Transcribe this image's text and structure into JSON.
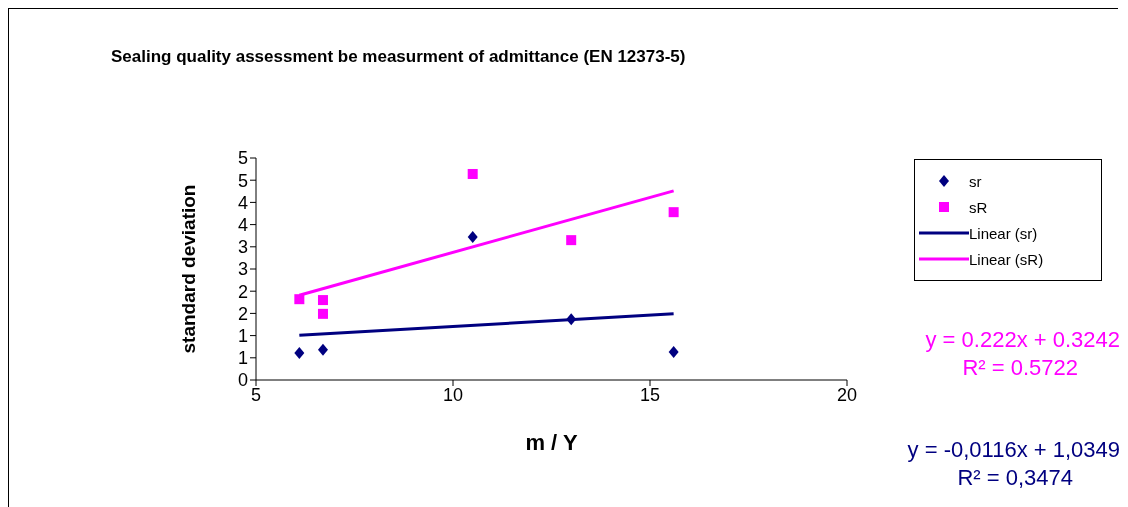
{
  "chart_data": {
    "type": "scatter",
    "title": "Sealing quality assessment be measurment of admittance (EN 12373-5)",
    "xlabel": "m / Y",
    "ylabel": "standard deviation",
    "xlim": [
      5,
      20
    ],
    "xticks": [
      5,
      10,
      15,
      20
    ],
    "ylim": [
      0,
      5
    ],
    "yticks": [
      0,
      {
        "value": 0.5,
        "label": "1"
      },
      1,
      {
        "value": 1.5,
        "label": "2"
      },
      2,
      {
        "value": 2.5,
        "label": "3"
      },
      3,
      {
        "value": 3.5,
        "label": "4"
      },
      4,
      {
        "value": 4.5,
        "label": "5"
      },
      5
    ],
    "legend": "right",
    "series": [
      {
        "name": "sr",
        "marker": "diamond",
        "color": "#000080",
        "x": [
          6.1,
          6.7,
          10.5,
          13,
          15.6
        ],
        "values": [
          0.61,
          0.68,
          3.22,
          1.37,
          0.63
        ]
      },
      {
        "name": "sR",
        "marker": "square",
        "color": "#ff00ff",
        "x": [
          6.1,
          6.7,
          6.7,
          10.5,
          13,
          15.6
        ],
        "values": [
          1.82,
          1.8,
          1.49,
          4.64,
          3.15,
          3.78
        ]
      },
      {
        "name": "Linear (sr)",
        "type": "line",
        "marker": "none",
        "color": "#000080",
        "x": [
          6.1,
          15.6
        ],
        "values": [
          1.01,
          1.49
        ]
      },
      {
        "name": "Linear (sR)",
        "type": "line",
        "marker": "none",
        "color": "#ff00ff",
        "x": [
          6.1,
          15.6
        ],
        "values": [
          1.91,
          4.26
        ]
      }
    ],
    "annotations": [
      "y = 0.222x + 0.3242",
      "R² = 0.5722",
      "y = -0,0116x + 1,0349",
      "R² = 0,3474"
    ]
  }
}
